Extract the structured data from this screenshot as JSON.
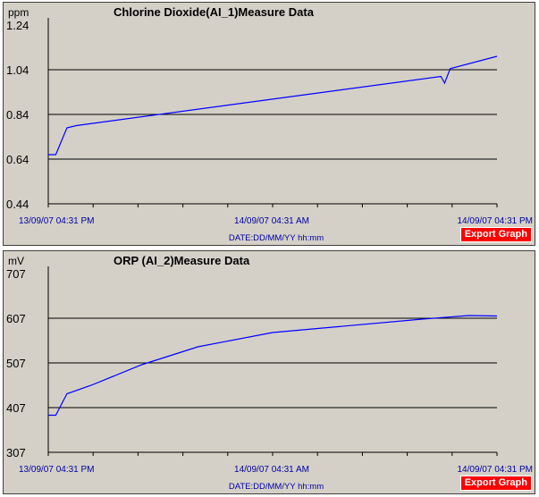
{
  "chart_data": [
    {
      "type": "line",
      "title": "Chlorine Dioxide(AI_1)Measure Data",
      "unit": "ppm",
      "xlabel": "DATE:DD/MM/YY hh:mm",
      "x_ticks": [
        "13/09/07 04:31 PM",
        "14/09/07 04:31 AM",
        "14/09/07 04:31 PM"
      ],
      "y_ticks": [
        "1.24",
        "1.04",
        "0.84",
        "0.64",
        "0.44"
      ],
      "ylim": [
        0.44,
        1.24
      ],
      "grid": "horizontal",
      "color": "#0000ff",
      "x": [
        0.0,
        0.4,
        1.0,
        1.5,
        21.0,
        21.2,
        21.5,
        24.0
      ],
      "y": [
        0.66,
        0.66,
        0.78,
        0.79,
        1.01,
        0.98,
        1.045,
        1.1
      ]
    },
    {
      "type": "line",
      "title": "ORP (AI_2)Measure Data",
      "unit": "mV",
      "xlabel": "DATE:DD/MM/YY hh:mm",
      "x_ticks": [
        "13/09/07 04:31 PM",
        "14/09/07 04:31 AM",
        "14/09/07 04:31 PM"
      ],
      "y_ticks": [
        "707",
        "607",
        "507",
        "407",
        "307"
      ],
      "ylim": [
        307,
        707
      ],
      "grid": "horizontal",
      "color": "#0000ff",
      "x": [
        0.0,
        0.4,
        1.0,
        2.3,
        5.0,
        8.0,
        12.0,
        20.0,
        22.5,
        24.0
      ],
      "y": [
        390,
        390,
        438,
        457,
        503,
        543,
        575,
        605,
        613,
        612
      ]
    }
  ],
  "export_label": "Export Graph"
}
